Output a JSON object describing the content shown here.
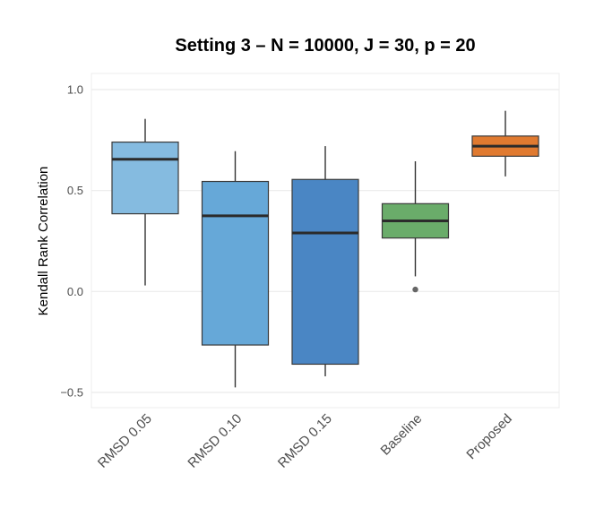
{
  "chart_data": {
    "type": "box",
    "title": "Setting 3 – N = 10000, J = 30, p = 20",
    "xlabel": "",
    "ylabel": "Kendall Rank Correlation",
    "ylim": [
      -0.58,
      1.12
    ],
    "yticks": [
      1.0,
      0.5,
      0.0,
      -0.5
    ],
    "ytick_labels": [
      "1.0",
      "0.5",
      "0.0",
      "−0.5"
    ],
    "grid": true,
    "categories": [
      "RMSD 0.05",
      "RMSD 0.10",
      "RMSD 0.15",
      "Baseline",
      "Proposed"
    ],
    "boxes": [
      {
        "category": "RMSD 0.05",
        "whisker_low": 0.03,
        "q1": 0.385,
        "median": 0.655,
        "q3": 0.74,
        "whisker_high": 0.855,
        "outliers": [],
        "color": "#85bbe0"
      },
      {
        "category": "RMSD 0.10",
        "whisker_low": -0.475,
        "q1": -0.265,
        "median": 0.375,
        "q3": 0.545,
        "whisker_high": 0.695,
        "outliers": [],
        "color": "#66a8d8"
      },
      {
        "category": "RMSD 0.15",
        "whisker_low": -0.42,
        "q1": -0.36,
        "median": 0.29,
        "q3": 0.555,
        "whisker_high": 0.72,
        "outliers": [],
        "color": "#4a86c4"
      },
      {
        "category": "Baseline",
        "whisker_low": 0.075,
        "q1": 0.265,
        "median": 0.35,
        "q3": 0.435,
        "whisker_high": 0.645,
        "outliers": [
          0.01
        ],
        "color": "#6aac6a"
      },
      {
        "category": "Proposed",
        "whisker_low": 0.57,
        "q1": 0.67,
        "median": 0.72,
        "q3": 0.77,
        "whisker_high": 0.895,
        "outliers": [],
        "color": "#e07a30"
      }
    ]
  }
}
